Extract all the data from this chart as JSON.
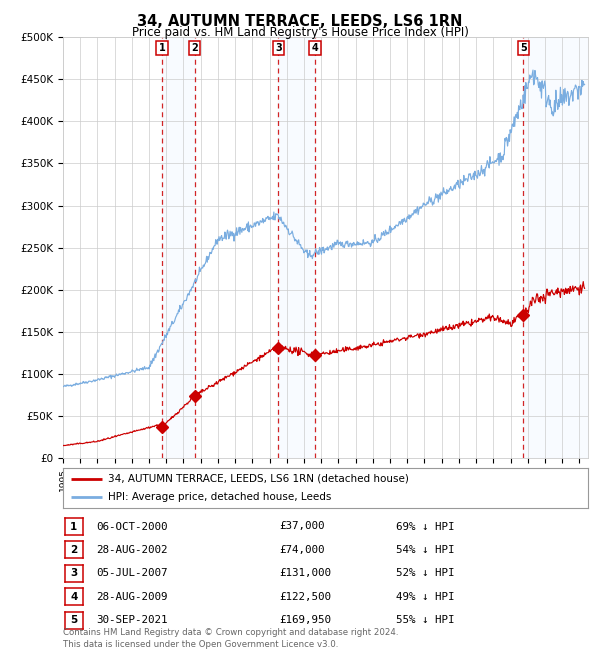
{
  "title": "34, AUTUMN TERRACE, LEEDS, LS6 1RN",
  "subtitle": "Price paid vs. HM Land Registry's House Price Index (HPI)",
  "ylim": [
    0,
    500000
  ],
  "yticks": [
    0,
    50000,
    100000,
    150000,
    200000,
    250000,
    300000,
    350000,
    400000,
    450000,
    500000
  ],
  "ytick_labels": [
    "£0",
    "£50K",
    "£100K",
    "£150K",
    "£200K",
    "£250K",
    "£300K",
    "£350K",
    "£400K",
    "£450K",
    "£500K"
  ],
  "xlim_start": 1995.0,
  "xlim_end": 2025.5,
  "transactions": [
    {
      "label": "1",
      "year": 2000.76,
      "price": 37000,
      "date": "06-OCT-2000",
      "pct": "69%"
    },
    {
      "label": "2",
      "year": 2002.65,
      "price": 74000,
      "date": "28-AUG-2002",
      "pct": "54%"
    },
    {
      "label": "3",
      "year": 2007.51,
      "price": 131000,
      "date": "05-JUL-2007",
      "pct": "52%"
    },
    {
      "label": "4",
      "year": 2009.65,
      "price": 122500,
      "date": "28-AUG-2009",
      "pct": "49%"
    },
    {
      "label": "5",
      "year": 2021.75,
      "price": 169950,
      "date": "30-SEP-2021",
      "pct": "55%"
    }
  ],
  "legend_line1": "34, AUTUMN TERRACE, LEEDS, LS6 1RN (detached house)",
  "legend_line2": "HPI: Average price, detached house, Leeds",
  "footer1": "Contains HM Land Registry data © Crown copyright and database right 2024.",
  "footer2": "This data is licensed under the Open Government Licence v3.0.",
  "red_color": "#cc0000",
  "blue_color": "#7aade0",
  "shade_color": "#ddeeff",
  "grid_color": "#cccccc",
  "table_rows": [
    [
      "1",
      "06-OCT-2000",
      "£37,000",
      "69% ↓ HPI"
    ],
    [
      "2",
      "28-AUG-2002",
      "£74,000",
      "54% ↓ HPI"
    ],
    [
      "3",
      "05-JUL-2007",
      "£131,000",
      "52% ↓ HPI"
    ],
    [
      "4",
      "28-AUG-2009",
      "£122,500",
      "49% ↓ HPI"
    ],
    [
      "5",
      "30-SEP-2021",
      "£169,950",
      "55% ↓ HPI"
    ]
  ]
}
